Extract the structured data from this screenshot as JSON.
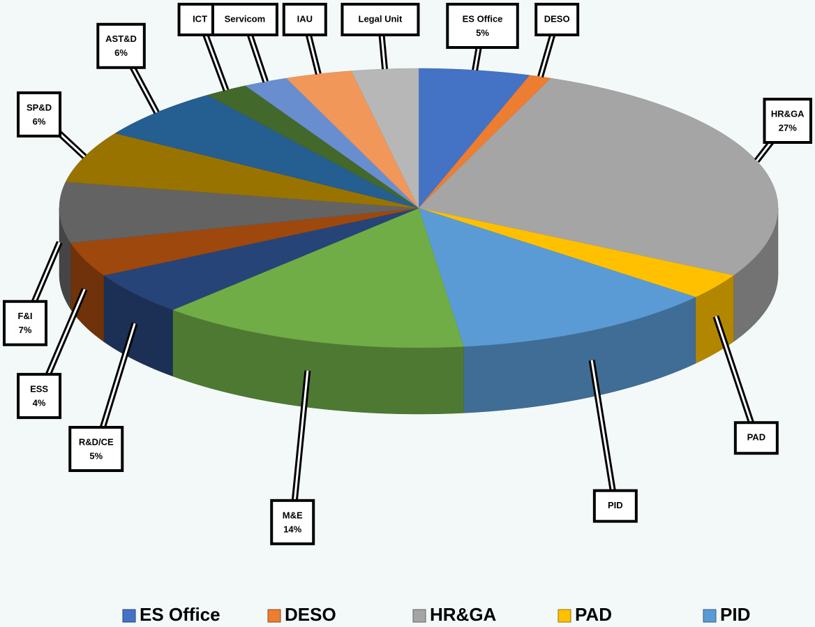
{
  "chart_data": {
    "type": "pie",
    "categories": [
      "ES Office",
      "DESO",
      "HR&GA",
      "PAD",
      "PID",
      "M&E",
      "R&D/CE",
      "ESS",
      "F&I",
      "SP&D",
      "AST&D",
      "ICT",
      "Servicom",
      "IAU",
      "Legal Unit"
    ],
    "values": [
      5,
      1,
      27,
      3,
      12,
      14,
      5,
      4,
      7,
      6,
      6,
      2,
      2,
      3,
      3
    ],
    "value_labels": [
      "5%",
      null,
      "27%",
      null,
      null,
      "14%",
      "5%",
      "4%",
      "7%",
      "6%",
      "6%",
      null,
      null,
      null,
      null
    ],
    "colors": [
      "#4472c4",
      "#ed7d31",
      "#a5a5a5",
      "#ffc000",
      "#5b9bd5",
      "#70ad47",
      "#264478",
      "#9e480e",
      "#636363",
      "#997300",
      "#255e91",
      "#43682b",
      "#698ed0",
      "#f1975a",
      "#b7b7b7"
    ],
    "legend": "bottom"
  }
}
